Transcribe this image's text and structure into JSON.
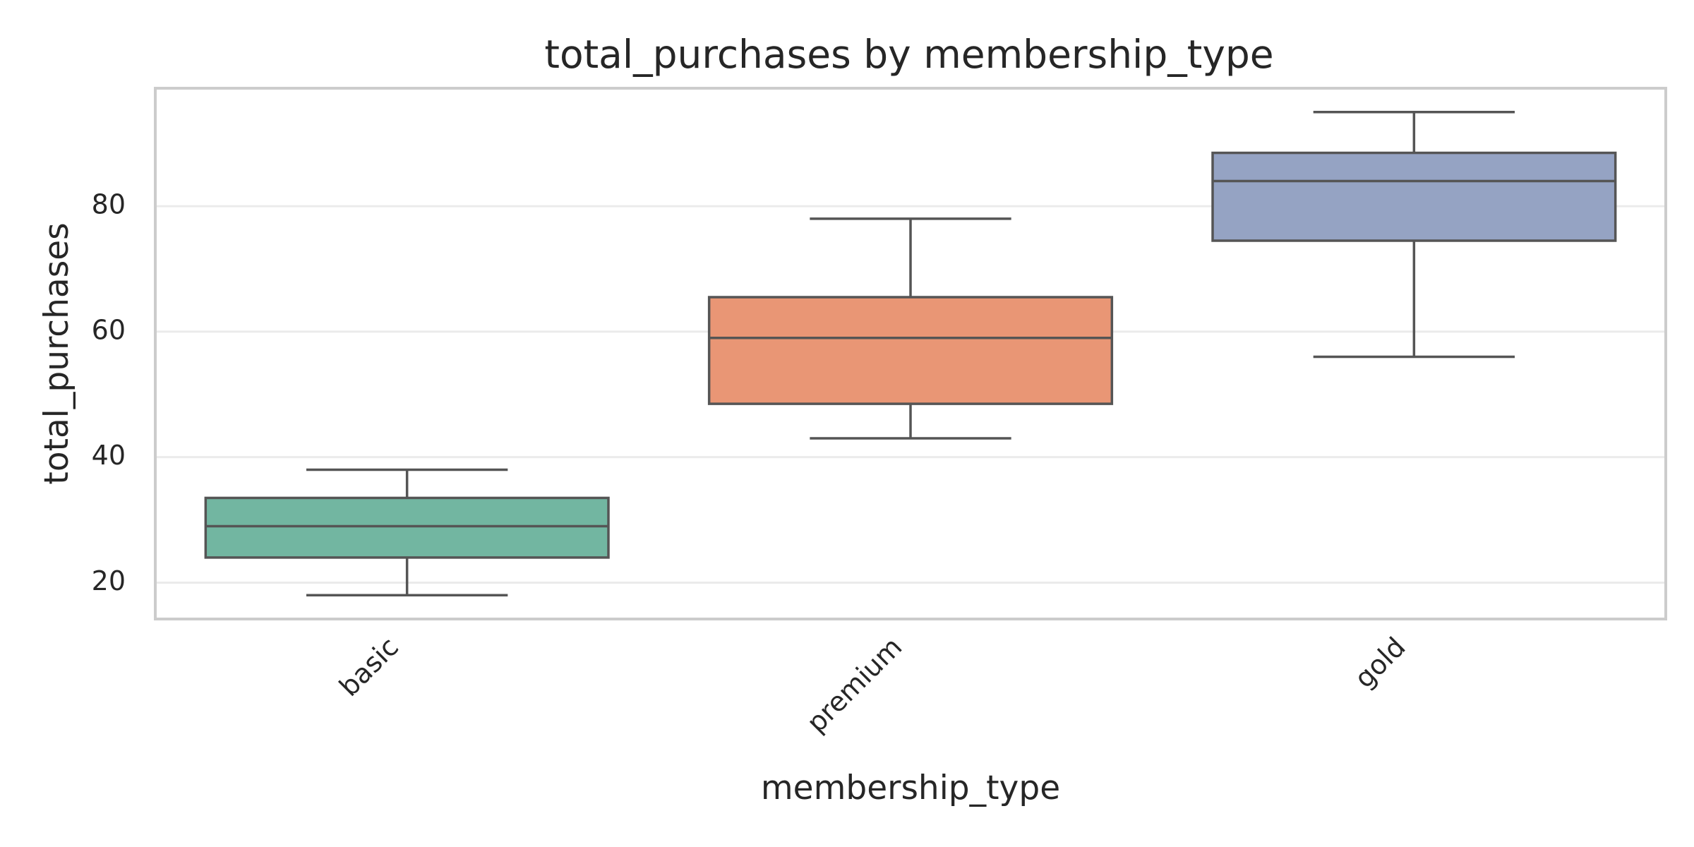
{
  "chart_data": {
    "type": "box",
    "title": "total_purchases by membership_type",
    "xlabel": "membership_type",
    "ylabel": "total_purchases",
    "ylim": [
      14.2,
      98.8
    ],
    "yticks": [
      20,
      40,
      60,
      80
    ],
    "grid": "horizontal",
    "categories": [
      "basic",
      "premium",
      "gold"
    ],
    "boxes": [
      {
        "category": "basic",
        "whisker_low": 18,
        "q1": 24,
        "median": 29,
        "q3": 33.5,
        "whisker_high": 38,
        "color": "#72b6a1"
      },
      {
        "category": "premium",
        "whisker_low": 43,
        "q1": 48.5,
        "median": 59,
        "q3": 65.5,
        "whisker_high": 78,
        "color": "#e99675"
      },
      {
        "category": "gold",
        "whisker_low": 56,
        "q1": 74.5,
        "median": 84,
        "q3": 88.5,
        "whisker_high": 95,
        "color": "#95a3c3"
      }
    ]
  }
}
